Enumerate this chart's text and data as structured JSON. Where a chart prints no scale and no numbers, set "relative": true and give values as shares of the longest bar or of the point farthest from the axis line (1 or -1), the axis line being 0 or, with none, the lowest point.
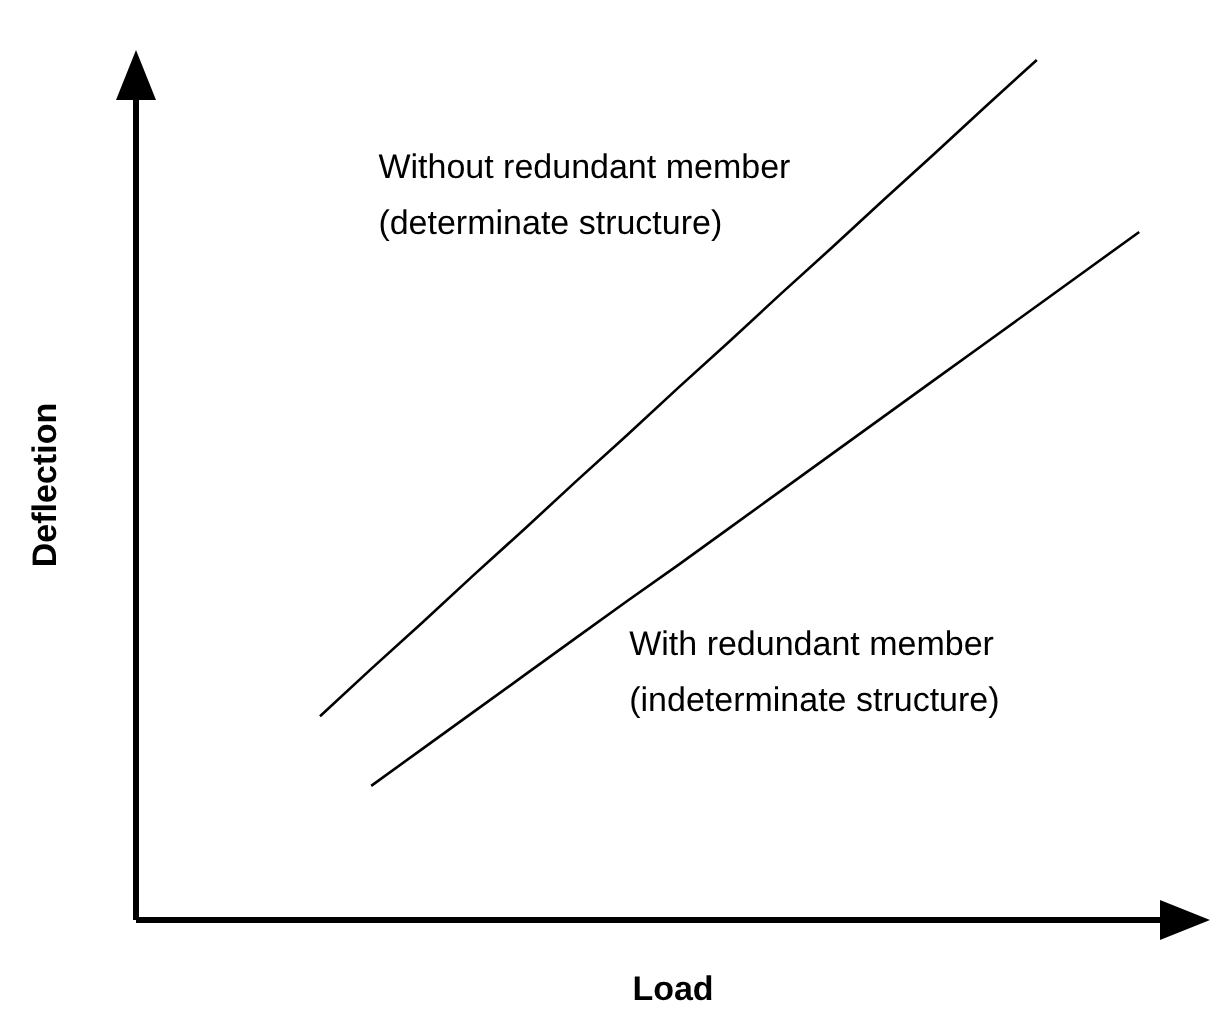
{
  "chart_data": {
    "type": "line",
    "relative": true,
    "xlabel": "Load",
    "ylabel": "Deflection",
    "line_style": "solid",
    "categories": [
      null,
      null,
      null,
      null,
      null,
      null,
      null,
      null,
      null,
      null,
      null,
      null,
      null,
      null,
      null,
      null,
      null,
      null,
      null,
      null,
      null
    ],
    "series": [
      {
        "name": "Without redundant member\n(determinate structure)",
        "color": "#000000",
        "values": [
          null,
          null,
          null,
          null,
          0.237,
          0.292,
          0.346,
          0.401,
          0.455,
          0.51,
          0.564,
          0.619,
          0.673,
          0.728,
          0.782,
          0.837,
          0.891,
          0.946,
          1.0,
          null,
          null
        ]
      },
      {
        "name": "With redundant member\n(indeterminate structure)",
        "color": "#000000",
        "values": [
          null,
          null,
          null,
          null,
          null,
          0.156,
          0.199,
          0.242,
          0.285,
          0.328,
          0.371,
          0.413,
          0.456,
          0.499,
          0.542,
          0.585,
          0.628,
          0.671,
          0.714,
          0.757,
          0.8
        ]
      }
    ]
  }
}
